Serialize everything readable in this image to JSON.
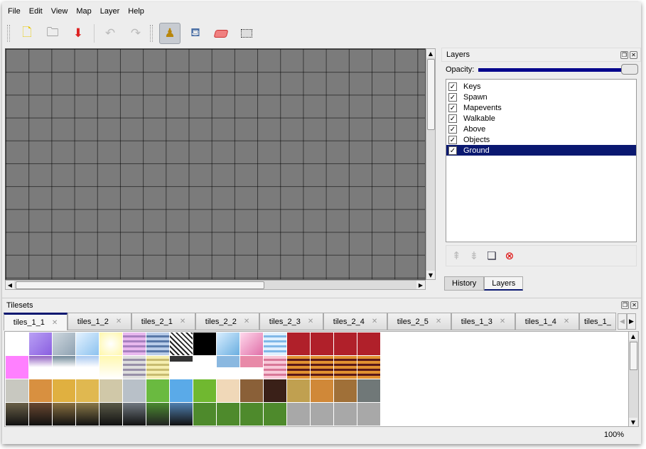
{
  "menu": [
    "File",
    "Edit",
    "View",
    "Map",
    "Layer",
    "Help"
  ],
  "toolbar": {
    "icons": [
      "new-icon",
      "open-icon",
      "save-icon",
      "undo-icon",
      "redo-icon",
      "stamp-brush-icon",
      "bucket-fill-icon",
      "eraser-icon",
      "rect-select-icon"
    ],
    "active": "stamp-brush-icon"
  },
  "layers_panel": {
    "title": "Layers",
    "opacity_label": "Opacity:",
    "opacity": 100,
    "layers": [
      {
        "name": "Keys",
        "visible": true
      },
      {
        "name": "Spawn",
        "visible": true
      },
      {
        "name": "Mapevents",
        "visible": true
      },
      {
        "name": "Walkable",
        "visible": true
      },
      {
        "name": "Above",
        "visible": true
      },
      {
        "name": "Objects",
        "visible": true
      },
      {
        "name": "Ground",
        "visible": true,
        "selected": true
      }
    ],
    "tabs": [
      "History",
      "Layers"
    ],
    "active_tab": "Layers"
  },
  "tilesets_panel": {
    "title": "Tilesets",
    "tabs": [
      "tiles_1_1",
      "tiles_1_2",
      "tiles_2_1",
      "tiles_2_2",
      "tiles_2_3",
      "tiles_2_4",
      "tiles_2_5",
      "tiles_1_3",
      "tiles_1_4",
      "tiles_1_"
    ],
    "active_tab": "tiles_1_1"
  },
  "status": {
    "zoom": "100%"
  },
  "colors": {
    "selection": "#0a1870",
    "canvas": "#7b7b7b"
  }
}
